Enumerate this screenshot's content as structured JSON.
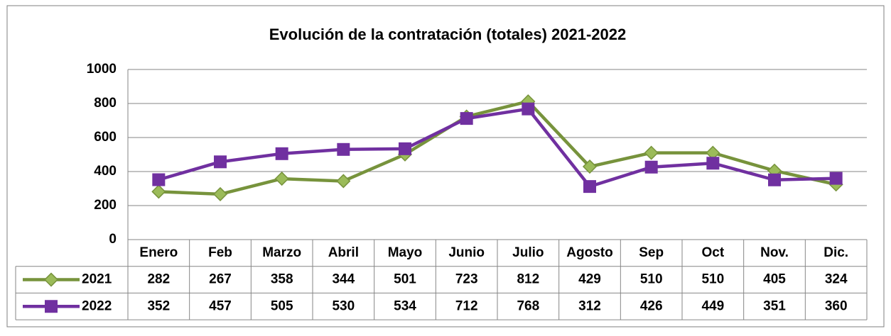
{
  "chart_data": {
    "type": "line",
    "title": "Evolución de la contratación (totales) 2021-2022",
    "categories": [
      "Enero",
      "Feb",
      "Marzo",
      "Abril",
      "Mayo",
      "Junio",
      "Julio",
      "Agosto",
      "Sep",
      "Oct",
      "Nov.",
      "Dic."
    ],
    "series": [
      {
        "name": "2021",
        "color": "#77933c",
        "marker_color": "#9bbb59",
        "marker": "diamond",
        "values": [
          282,
          267,
          358,
          344,
          501,
          723,
          812,
          429,
          510,
          510,
          405,
          324
        ]
      },
      {
        "name": "2022",
        "color": "#7030a0",
        "marker_color": "#7030a0",
        "marker": "square",
        "values": [
          352,
          457,
          505,
          530,
          534,
          712,
          768,
          312,
          426,
          449,
          351,
          360
        ]
      }
    ],
    "ylim": [
      0,
      1000
    ],
    "yticks": [
      0,
      200,
      400,
      600,
      800,
      1000
    ],
    "grid": true
  }
}
